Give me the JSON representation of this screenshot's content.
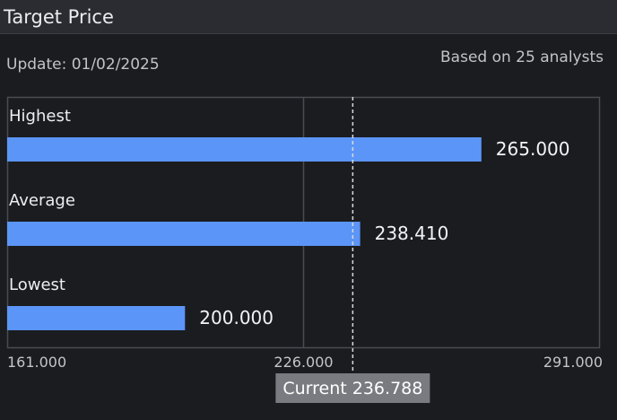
{
  "header": {
    "title": "Target Price"
  },
  "info": {
    "update_text": "Update: 01/02/2025",
    "analysts_text": "Based on 25 analysts"
  },
  "colors": {
    "bar": "#5b95f7",
    "grid": "#4a4b51",
    "current_line": "#d9d9d9",
    "current_badge_bg": "#7a7b80"
  },
  "chart_data": {
    "type": "bar",
    "orientation": "horizontal",
    "title": "Target Price",
    "categories": [
      "Highest",
      "Average",
      "Lowest"
    ],
    "values": [
      265.0,
      238.41,
      200.0
    ],
    "value_labels": [
      "265.000",
      "238.410",
      "200.000"
    ],
    "xlim": [
      161.0,
      291.0
    ],
    "xticks": [
      161.0,
      226.0,
      291.0
    ],
    "xtick_labels": [
      "161.000",
      "226.000",
      "291.000"
    ],
    "current": {
      "value": 236.788,
      "label": "Current 236.788"
    },
    "grid": true
  }
}
